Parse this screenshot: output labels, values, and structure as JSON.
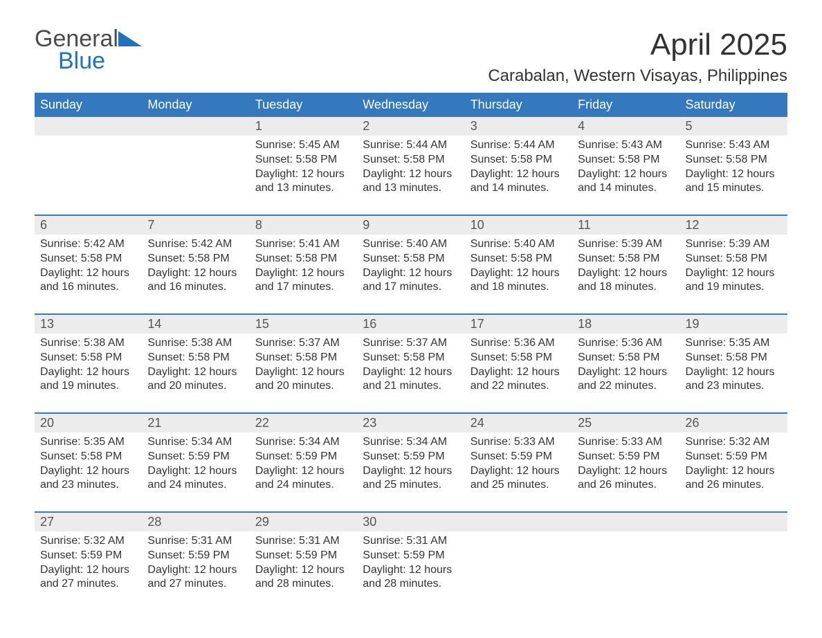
{
  "brand": {
    "word1": "General",
    "word2": "Blue"
  },
  "title": "April 2025",
  "location": "Carabalan, Western Visayas, Philippines",
  "colors": {
    "header_bg": "#3478bd",
    "header_text": "#ffffff",
    "date_row_bg": "#ececec",
    "week_border": "#3b79b8",
    "brand_blue": "#1e73be",
    "brand_gray": "#4a4a4a",
    "body_text": "#333333",
    "background": "#ffffff"
  },
  "typography": {
    "title_fontsize": 44,
    "location_fontsize": 24,
    "header_fontsize": 18,
    "date_fontsize": 18,
    "body_fontsize": 16
  },
  "columns": [
    "Sunday",
    "Monday",
    "Tuesday",
    "Wednesday",
    "Thursday",
    "Friday",
    "Saturday"
  ],
  "weeks": [
    {
      "dates": [
        "",
        "",
        "1",
        "2",
        "3",
        "4",
        "5"
      ],
      "cells": [
        null,
        null,
        {
          "sunrise": "Sunrise: 5:45 AM",
          "sunset": "Sunset: 5:58 PM",
          "day1": "Daylight: 12 hours",
          "day2": "and 13 minutes."
        },
        {
          "sunrise": "Sunrise: 5:44 AM",
          "sunset": "Sunset: 5:58 PM",
          "day1": "Daylight: 12 hours",
          "day2": "and 13 minutes."
        },
        {
          "sunrise": "Sunrise: 5:44 AM",
          "sunset": "Sunset: 5:58 PM",
          "day1": "Daylight: 12 hours",
          "day2": "and 14 minutes."
        },
        {
          "sunrise": "Sunrise: 5:43 AM",
          "sunset": "Sunset: 5:58 PM",
          "day1": "Daylight: 12 hours",
          "day2": "and 14 minutes."
        },
        {
          "sunrise": "Sunrise: 5:43 AM",
          "sunset": "Sunset: 5:58 PM",
          "day1": "Daylight: 12 hours",
          "day2": "and 15 minutes."
        }
      ]
    },
    {
      "dates": [
        "6",
        "7",
        "8",
        "9",
        "10",
        "11",
        "12"
      ],
      "cells": [
        {
          "sunrise": "Sunrise: 5:42 AM",
          "sunset": "Sunset: 5:58 PM",
          "day1": "Daylight: 12 hours",
          "day2": "and 16 minutes."
        },
        {
          "sunrise": "Sunrise: 5:42 AM",
          "sunset": "Sunset: 5:58 PM",
          "day1": "Daylight: 12 hours",
          "day2": "and 16 minutes."
        },
        {
          "sunrise": "Sunrise: 5:41 AM",
          "sunset": "Sunset: 5:58 PM",
          "day1": "Daylight: 12 hours",
          "day2": "and 17 minutes."
        },
        {
          "sunrise": "Sunrise: 5:40 AM",
          "sunset": "Sunset: 5:58 PM",
          "day1": "Daylight: 12 hours",
          "day2": "and 17 minutes."
        },
        {
          "sunrise": "Sunrise: 5:40 AM",
          "sunset": "Sunset: 5:58 PM",
          "day1": "Daylight: 12 hours",
          "day2": "and 18 minutes."
        },
        {
          "sunrise": "Sunrise: 5:39 AM",
          "sunset": "Sunset: 5:58 PM",
          "day1": "Daylight: 12 hours",
          "day2": "and 18 minutes."
        },
        {
          "sunrise": "Sunrise: 5:39 AM",
          "sunset": "Sunset: 5:58 PM",
          "day1": "Daylight: 12 hours",
          "day2": "and 19 minutes."
        }
      ]
    },
    {
      "dates": [
        "13",
        "14",
        "15",
        "16",
        "17",
        "18",
        "19"
      ],
      "cells": [
        {
          "sunrise": "Sunrise: 5:38 AM",
          "sunset": "Sunset: 5:58 PM",
          "day1": "Daylight: 12 hours",
          "day2": "and 19 minutes."
        },
        {
          "sunrise": "Sunrise: 5:38 AM",
          "sunset": "Sunset: 5:58 PM",
          "day1": "Daylight: 12 hours",
          "day2": "and 20 minutes."
        },
        {
          "sunrise": "Sunrise: 5:37 AM",
          "sunset": "Sunset: 5:58 PM",
          "day1": "Daylight: 12 hours",
          "day2": "and 20 minutes."
        },
        {
          "sunrise": "Sunrise: 5:37 AM",
          "sunset": "Sunset: 5:58 PM",
          "day1": "Daylight: 12 hours",
          "day2": "and 21 minutes."
        },
        {
          "sunrise": "Sunrise: 5:36 AM",
          "sunset": "Sunset: 5:58 PM",
          "day1": "Daylight: 12 hours",
          "day2": "and 22 minutes."
        },
        {
          "sunrise": "Sunrise: 5:36 AM",
          "sunset": "Sunset: 5:58 PM",
          "day1": "Daylight: 12 hours",
          "day2": "and 22 minutes."
        },
        {
          "sunrise": "Sunrise: 5:35 AM",
          "sunset": "Sunset: 5:58 PM",
          "day1": "Daylight: 12 hours",
          "day2": "and 23 minutes."
        }
      ]
    },
    {
      "dates": [
        "20",
        "21",
        "22",
        "23",
        "24",
        "25",
        "26"
      ],
      "cells": [
        {
          "sunrise": "Sunrise: 5:35 AM",
          "sunset": "Sunset: 5:58 PM",
          "day1": "Daylight: 12 hours",
          "day2": "and 23 minutes."
        },
        {
          "sunrise": "Sunrise: 5:34 AM",
          "sunset": "Sunset: 5:59 PM",
          "day1": "Daylight: 12 hours",
          "day2": "and 24 minutes."
        },
        {
          "sunrise": "Sunrise: 5:34 AM",
          "sunset": "Sunset: 5:59 PM",
          "day1": "Daylight: 12 hours",
          "day2": "and 24 minutes."
        },
        {
          "sunrise": "Sunrise: 5:34 AM",
          "sunset": "Sunset: 5:59 PM",
          "day1": "Daylight: 12 hours",
          "day2": "and 25 minutes."
        },
        {
          "sunrise": "Sunrise: 5:33 AM",
          "sunset": "Sunset: 5:59 PM",
          "day1": "Daylight: 12 hours",
          "day2": "and 25 minutes."
        },
        {
          "sunrise": "Sunrise: 5:33 AM",
          "sunset": "Sunset: 5:59 PM",
          "day1": "Daylight: 12 hours",
          "day2": "and 26 minutes."
        },
        {
          "sunrise": "Sunrise: 5:32 AM",
          "sunset": "Sunset: 5:59 PM",
          "day1": "Daylight: 12 hours",
          "day2": "and 26 minutes."
        }
      ]
    },
    {
      "dates": [
        "27",
        "28",
        "29",
        "30",
        "",
        "",
        ""
      ],
      "cells": [
        {
          "sunrise": "Sunrise: 5:32 AM",
          "sunset": "Sunset: 5:59 PM",
          "day1": "Daylight: 12 hours",
          "day2": "and 27 minutes."
        },
        {
          "sunrise": "Sunrise: 5:31 AM",
          "sunset": "Sunset: 5:59 PM",
          "day1": "Daylight: 12 hours",
          "day2": "and 27 minutes."
        },
        {
          "sunrise": "Sunrise: 5:31 AM",
          "sunset": "Sunset: 5:59 PM",
          "day1": "Daylight: 12 hours",
          "day2": "and 28 minutes."
        },
        {
          "sunrise": "Sunrise: 5:31 AM",
          "sunset": "Sunset: 5:59 PM",
          "day1": "Daylight: 12 hours",
          "day2": "and 28 minutes."
        },
        null,
        null,
        null
      ]
    }
  ]
}
